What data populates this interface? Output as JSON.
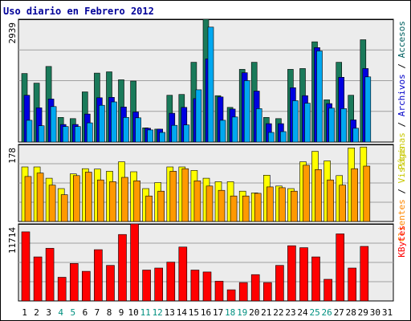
{
  "title": "Uso diario en Febrero 2012",
  "chart_data": [
    {
      "type": "bar",
      "panel": "top",
      "y_tick_label": "2939",
      "ylim": [
        0,
        2939
      ],
      "side_labels": [
        {
          "text": "Páginas",
          "color": "#c8c800"
        },
        {
          "text": " / ",
          "color": "#000000"
        },
        {
          "text": "Archivos",
          "color": "#0000c8"
        },
        {
          "text": " / ",
          "color": "#000000"
        },
        {
          "text": "Accesos",
          "color": "#006060"
        }
      ],
      "categories": [
        "1",
        "2",
        "3",
        "4",
        "5",
        "6",
        "7",
        "8",
        "9",
        "10",
        "11",
        "12",
        "13",
        "14",
        "15",
        "16",
        "17",
        "18",
        "19",
        "20",
        "21",
        "22",
        "23",
        "24",
        "25",
        "26",
        "27",
        "28",
        "29",
        "30",
        "31"
      ],
      "series": [
        {
          "name": "Accesos",
          "color": "#1a7a5a",
          "values": [
            1640,
            1410,
            1810,
            590,
            560,
            1200,
            1650,
            1680,
            1490,
            1460,
            340,
            310,
            1120,
            1140,
            1910,
            2939,
            1110,
            830,
            1740,
            1910,
            590,
            560,
            1740,
            1760,
            2400,
            1010,
            1910,
            1120,
            2450,
            null,
            null
          ]
        },
        {
          "name": "Archivos",
          "color": "#0000e0",
          "values": [
            1120,
            820,
            1030,
            420,
            420,
            670,
            1060,
            1070,
            840,
            720,
            330,
            310,
            690,
            830,
            1040,
            1990,
            1080,
            790,
            1660,
            1220,
            440,
            440,
            1300,
            1110,
            2260,
            920,
            1550,
            530,
            1760,
            null,
            null
          ]
        },
        {
          "name": "Páginas",
          "color": "#00a8f0",
          "values": [
            520,
            390,
            850,
            370,
            370,
            460,
            880,
            960,
            590,
            580,
            290,
            230,
            400,
            410,
            1250,
            2750,
            520,
            600,
            1470,
            800,
            230,
            250,
            990,
            930,
            2180,
            810,
            800,
            330,
            1560,
            null,
            null
          ]
        }
      ]
    },
    {
      "type": "bar",
      "panel": "middle",
      "y_tick_label": "178",
      "ylim": [
        0,
        178
      ],
      "side_labels": [
        {
          "text": "Clientes",
          "color": "#ff8800"
        },
        {
          "text": " / ",
          "color": "#000000"
        },
        {
          "text": "Visitas",
          "color": "#c8c800"
        }
      ],
      "series": [
        {
          "name": "Visitas",
          "color": "#ffff00",
          "values": [
            126,
            126,
            100,
            76,
            110,
            122,
            121,
            116,
            138,
            115,
            76,
            90,
            126,
            126,
            118,
            100,
            92,
            92,
            70,
            66,
            107,
            82,
            76,
            138,
            162,
            140,
            106,
            170,
            172,
            null,
            null
          ]
        },
        {
          "name": "Clientes",
          "color": "#ff9900",
          "values": [
            104,
            112,
            84,
            62,
            106,
            114,
            96,
            92,
            102,
            94,
            59,
            70,
            116,
            122,
            94,
            82,
            72,
            59,
            59,
            65,
            80,
            78,
            70,
            130,
            120,
            96,
            84,
            122,
            128,
            null,
            null
          ]
        }
      ]
    },
    {
      "type": "bar",
      "panel": "bottom",
      "y_tick_label": "11714",
      "ylim": [
        0,
        11714
      ],
      "side_labels": [
        {
          "text": "KBytes",
          "color": "#ff0000"
        }
      ],
      "series": [
        {
          "name": "KBytes",
          "color": "#ff0000",
          "values": [
            10500,
            6700,
            8000,
            3600,
            5700,
            4500,
            7800,
            5400,
            10100,
            11714,
            4700,
            5000,
            5900,
            8200,
            4700,
            4400,
            3000,
            1700,
            2800,
            4000,
            2800,
            5400,
            8400,
            8100,
            6700,
            3300,
            10200,
            5000,
            8300,
            null,
            null
          ]
        }
      ]
    }
  ],
  "colors": {
    "panel_bg": "#ececec",
    "grid": "#a0a0a0",
    "axis": "#000000",
    "tick_dark": "#000000",
    "tick_weekend": "#009080"
  },
  "x_weekend_days": [
    "4",
    "5",
    "11",
    "12",
    "18",
    "19",
    "25",
    "26"
  ]
}
